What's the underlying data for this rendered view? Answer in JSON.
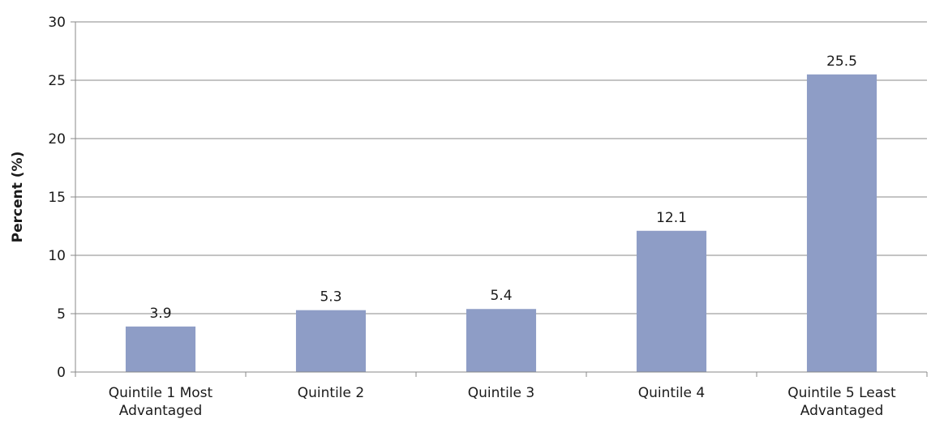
{
  "chart_data": {
    "type": "bar",
    "title": "",
    "xlabel": "",
    "ylabel": "Percent (%)",
    "categories": [
      [
        "Quintile 1 Most",
        "Advantaged"
      ],
      [
        "Quintile 2"
      ],
      [
        "Quintile 3"
      ],
      [
        "Quintile 4"
      ],
      [
        "Quintile 5 Least",
        "Advantaged"
      ]
    ],
    "values": [
      3.9,
      5.3,
      5.4,
      12.1,
      25.5
    ],
    "value_labels": [
      "3.9",
      "5.3",
      "5.4",
      "12.1",
      "25.5"
    ],
    "ylim": [
      0,
      30
    ],
    "yticks": [
      0,
      5,
      10,
      15,
      20,
      25,
      30
    ],
    "grid": true,
    "legend": "none",
    "colors": {
      "bar": "#8e9dc6",
      "grid": "#888888",
      "axis": "#888888"
    }
  }
}
